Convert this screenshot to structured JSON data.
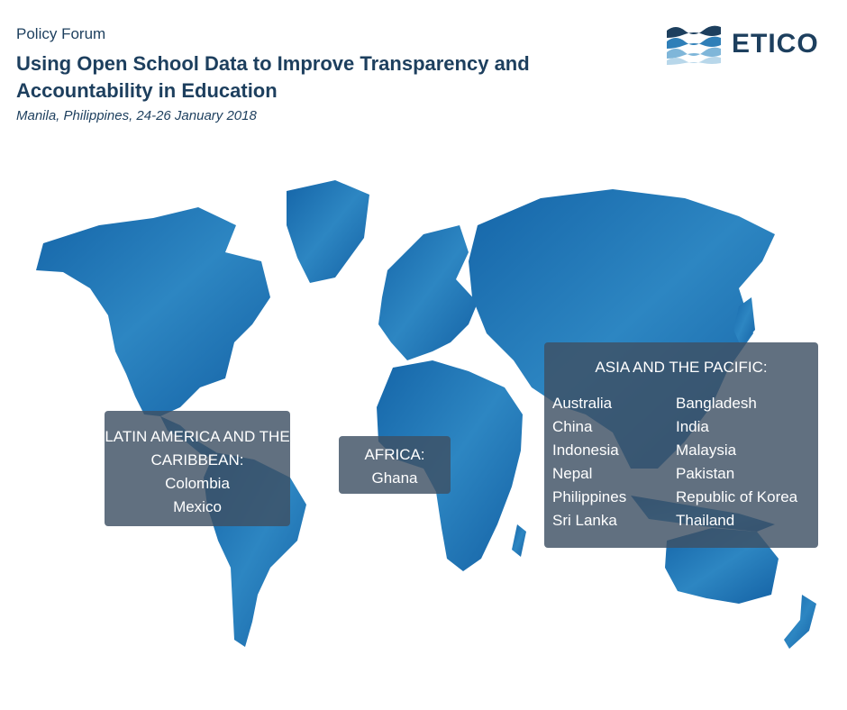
{
  "header": {
    "kicker": "Policy Forum",
    "title": "Using Open School Data to Improve Transparency and Accountability in Education",
    "subtitle": "Manila, Philippines, 24-26 January 2018"
  },
  "logo": {
    "text": "ETICO",
    "icon": "etico-wave-logo-icon"
  },
  "colors": {
    "navy": "#1d3f5e",
    "map_blue": "#1a6fb3",
    "map_blue_light": "#3a8fcb",
    "box_bg": "#3e5064"
  },
  "regions": {
    "latam": {
      "heading": "LATIN AMERICA AND THE CARIBBEAN:",
      "countries": [
        "Colombia",
        "Mexico"
      ]
    },
    "africa": {
      "heading": "AFRICA:",
      "countries": [
        "Ghana"
      ]
    },
    "asia": {
      "heading": "ASIA AND THE PACIFIC:",
      "countries": [
        "Australia",
        "Bangladesh",
        "China",
        "India",
        "Indonesia",
        "Malaysia",
        "Nepal",
        "Pakistan",
        "Philippines",
        "Republic of Korea",
        "Sri Lanka",
        "Thailand"
      ]
    }
  }
}
